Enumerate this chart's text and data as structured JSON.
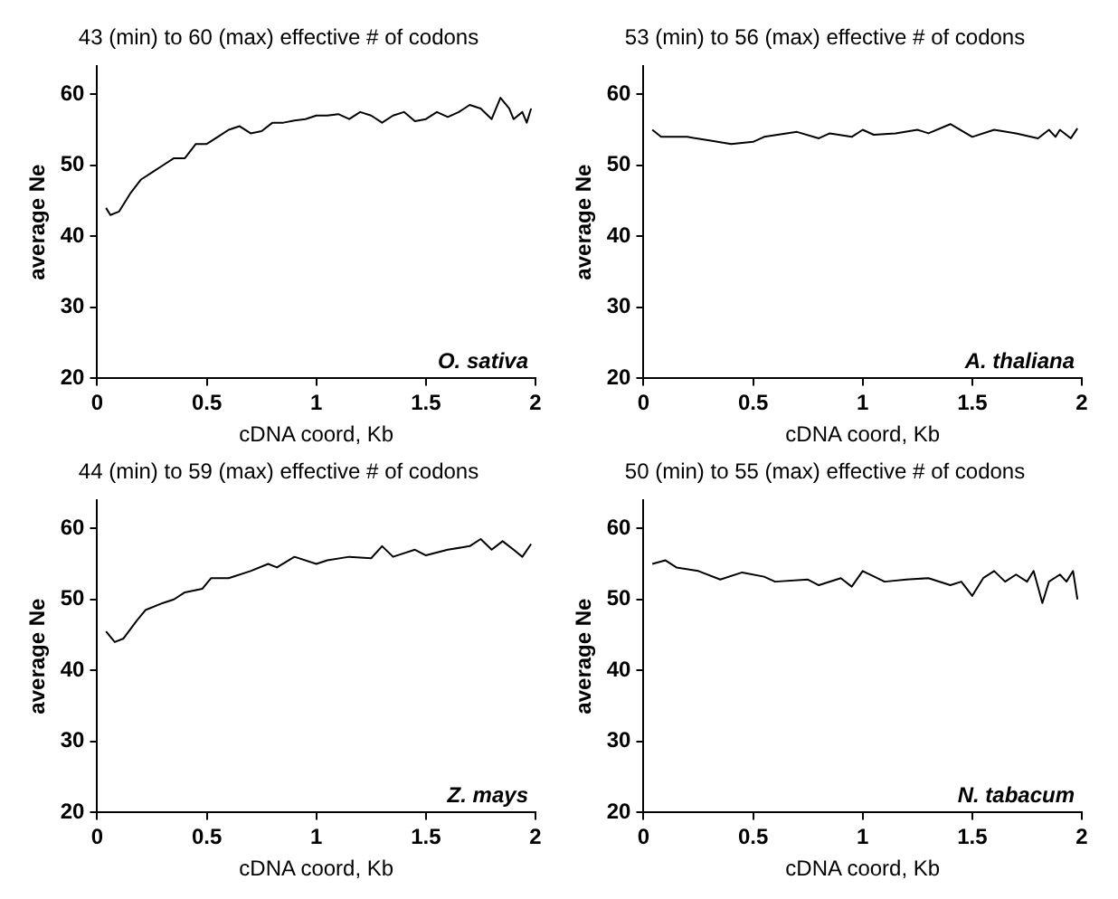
{
  "chart_data": [
    {
      "type": "line",
      "title": "43 (min) to 60 (max) effective # of codons",
      "xlabel": "cDNA coord, Kb",
      "ylabel": "average Ne",
      "annotations": [
        "O. sativa"
      ],
      "xlim": [
        0,
        2
      ],
      "xticks": [
        0,
        0.5,
        1,
        1.5,
        2
      ],
      "ylim": [
        20,
        64
      ],
      "yticks": [
        20,
        30,
        40,
        50,
        60
      ],
      "grid": false,
      "legend": false,
      "marker": "none",
      "line_style": "solid",
      "series": [
        {
          "color": "#000000",
          "x": [
            0.04,
            0.06,
            0.1,
            0.15,
            0.2,
            0.25,
            0.3,
            0.35,
            0.4,
            0.45,
            0.5,
            0.55,
            0.6,
            0.65,
            0.7,
            0.75,
            0.8,
            0.85,
            0.9,
            0.95,
            1.0,
            1.05,
            1.1,
            1.15,
            1.2,
            1.25,
            1.3,
            1.35,
            1.4,
            1.45,
            1.5,
            1.55,
            1.6,
            1.65,
            1.7,
            1.75,
            1.8,
            1.84,
            1.88,
            1.9,
            1.94,
            1.96,
            1.98
          ],
          "values": [
            44,
            43,
            43.5,
            46,
            48,
            49,
            50,
            51,
            51,
            53,
            53,
            54,
            55,
            55.5,
            54.5,
            54.8,
            56,
            56,
            56.3,
            56.5,
            57,
            57,
            57.2,
            56.5,
            57.5,
            57,
            56,
            57,
            57.5,
            56.2,
            56.5,
            57.5,
            56.8,
            57.5,
            58.5,
            58,
            56.5,
            59.5,
            58,
            56.5,
            57.5,
            56,
            58
          ]
        }
      ]
    },
    {
      "type": "line",
      "title": "53 (min) to 56 (max) effective # of codons",
      "xlabel": "cDNA coord, Kb",
      "ylabel": "average Ne",
      "annotations": [
        "A. thaliana"
      ],
      "xlim": [
        0,
        2
      ],
      "xticks": [
        0,
        0.5,
        1,
        1.5,
        2
      ],
      "ylim": [
        20,
        64
      ],
      "yticks": [
        20,
        30,
        40,
        50,
        60
      ],
      "grid": false,
      "legend": false,
      "marker": "none",
      "line_style": "solid",
      "series": [
        {
          "color": "#000000",
          "x": [
            0.04,
            0.08,
            0.2,
            0.3,
            0.4,
            0.5,
            0.55,
            0.7,
            0.8,
            0.85,
            0.95,
            1.0,
            1.05,
            1.15,
            1.25,
            1.3,
            1.4,
            1.5,
            1.6,
            1.7,
            1.8,
            1.85,
            1.88,
            1.9,
            1.95,
            1.98
          ],
          "values": [
            55,
            54,
            54,
            53.5,
            53,
            53.3,
            54,
            54.7,
            53.8,
            54.5,
            54,
            55,
            54.3,
            54.5,
            55,
            54.5,
            55.8,
            54,
            55,
            54.5,
            53.8,
            55,
            54,
            55,
            53.8,
            55.2
          ]
        }
      ]
    },
    {
      "type": "line",
      "title": "44 (min) to 59 (max) effective # of codons",
      "xlabel": "cDNA coord, Kb",
      "ylabel": "average Ne",
      "annotations": [
        "Z. mays"
      ],
      "xlim": [
        0,
        2
      ],
      "xticks": [
        0,
        0.5,
        1,
        1.5,
        2
      ],
      "ylim": [
        20,
        64
      ],
      "yticks": [
        20,
        30,
        40,
        50,
        60
      ],
      "grid": false,
      "legend": false,
      "marker": "none",
      "line_style": "solid",
      "series": [
        {
          "color": "#000000",
          "x": [
            0.04,
            0.08,
            0.12,
            0.18,
            0.22,
            0.3,
            0.35,
            0.4,
            0.48,
            0.52,
            0.6,
            0.7,
            0.78,
            0.82,
            0.9,
            1.0,
            1.05,
            1.15,
            1.25,
            1.3,
            1.35,
            1.45,
            1.5,
            1.6,
            1.7,
            1.75,
            1.8,
            1.85,
            1.9,
            1.94,
            1.98
          ],
          "values": [
            45.5,
            44,
            44.5,
            47,
            48.5,
            49.5,
            50,
            51,
            51.5,
            53,
            53,
            54,
            55,
            54.5,
            56,
            55,
            55.5,
            56,
            55.8,
            57.5,
            56,
            57,
            56.2,
            57,
            57.5,
            58.5,
            57,
            58.2,
            57,
            56,
            57.8
          ]
        }
      ]
    },
    {
      "type": "line",
      "title": "50 (min) to 55 (max) effective # of codons",
      "xlabel": "cDNA coord, Kb",
      "ylabel": "average Ne",
      "annotations": [
        "N. tabacum"
      ],
      "xlim": [
        0,
        2
      ],
      "xticks": [
        0,
        0.5,
        1,
        1.5,
        2
      ],
      "ylim": [
        20,
        64
      ],
      "yticks": [
        20,
        30,
        40,
        50,
        60
      ],
      "grid": false,
      "legend": false,
      "marker": "none",
      "line_style": "solid",
      "series": [
        {
          "color": "#000000",
          "x": [
            0.04,
            0.1,
            0.15,
            0.25,
            0.35,
            0.45,
            0.55,
            0.6,
            0.75,
            0.8,
            0.9,
            0.95,
            1.0,
            1.1,
            1.2,
            1.3,
            1.4,
            1.45,
            1.5,
            1.55,
            1.6,
            1.65,
            1.7,
            1.75,
            1.78,
            1.82,
            1.85,
            1.9,
            1.93,
            1.96,
            1.98
          ],
          "values": [
            55,
            55.5,
            54.5,
            54,
            52.8,
            53.8,
            53.2,
            52.5,
            52.8,
            52,
            53,
            51.8,
            54,
            52.5,
            52.8,
            53,
            52,
            52.5,
            50.5,
            53,
            54,
            52.5,
            53.5,
            52.5,
            54,
            49.5,
            52.5,
            53.5,
            52.5,
            54,
            50
          ]
        }
      ]
    }
  ]
}
